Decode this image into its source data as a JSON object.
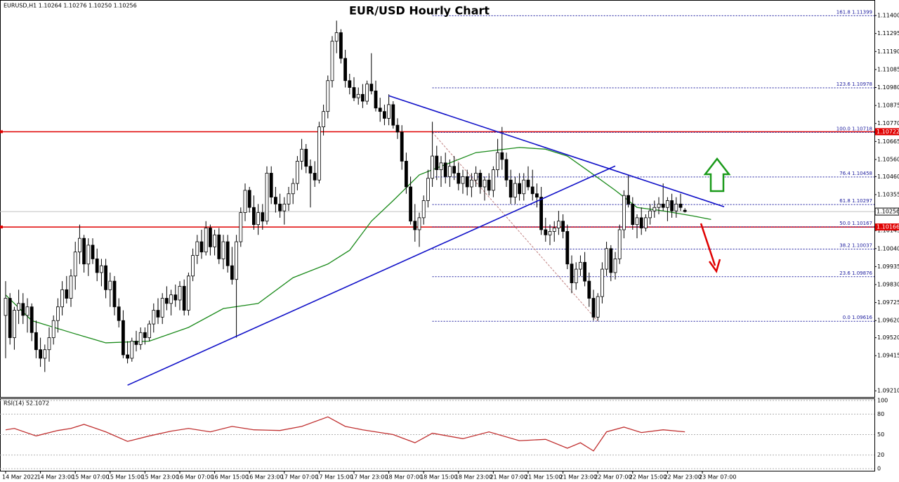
{
  "chart_data": {
    "type": "candlestick",
    "title": "EUR/USD Hourly Chart",
    "header": "EURUSD,H1  1.10264 1.10276 1.10250 1.10256",
    "ylim": [
      1.0917,
      1.1147
    ],
    "yticks": [
      {
        "value": 1.114,
        "label": "1.11400"
      },
      {
        "value": 1.11295,
        "label": "1.11295"
      },
      {
        "value": 1.1119,
        "label": "1.11190"
      },
      {
        "value": 1.11085,
        "label": "1.11085"
      },
      {
        "value": 1.1098,
        "label": "1.10980"
      },
      {
        "value": 1.10875,
        "label": "1.10875"
      },
      {
        "value": 1.1077,
        "label": "1.10770"
      },
      {
        "value": 1.10665,
        "label": "1.10665"
      },
      {
        "value": 1.1056,
        "label": "1.10560"
      },
      {
        "value": 1.1046,
        "label": "1.10460"
      },
      {
        "value": 1.10355,
        "label": "1.10355"
      },
      {
        "value": 1.10145,
        "label": "1.10145"
      },
      {
        "value": 1.1004,
        "label": "1.10040"
      },
      {
        "value": 1.09935,
        "label": "1.09935"
      },
      {
        "value": 1.0983,
        "label": "1.09830"
      },
      {
        "value": 1.09725,
        "label": "1.09725"
      },
      {
        "value": 1.0962,
        "label": "1.09620"
      },
      {
        "value": 1.0952,
        "label": "1.09520"
      },
      {
        "value": 1.09415,
        "label": "1.09415"
      },
      {
        "value": 1.0921,
        "label": "1.09210"
      }
    ],
    "x_labels": [
      "14 Mar 2022",
      "14 Mar 23:00",
      "15 Mar 07:00",
      "15 Mar 15:00",
      "15 Mar 23:00",
      "16 Mar 07:00",
      "16 Mar 15:00",
      "16 Mar 23:00",
      "17 Mar 07:00",
      "17 Mar 15:00",
      "17 Mar 23:00",
      "18 Mar 07:00",
      "18 Mar 15:00",
      "18 Mar 23:00",
      "21 Mar 07:00",
      "21 Mar 15:00",
      "21 Mar 23:00",
      "22 Mar 07:00",
      "22 Mar 15:00",
      "22 Mar 23:00",
      "23 Mar 07:00"
    ],
    "candles": [
      [
        1.0965,
        1.0985,
        1.094,
        1.0975
      ],
      [
        1.0975,
        1.0978,
        1.0948,
        1.0952
      ],
      [
        1.0952,
        1.097,
        1.0945,
        1.0968
      ],
      [
        1.0968,
        1.098,
        1.096,
        1.0972
      ],
      [
        1.0972,
        1.0978,
        1.096,
        1.0965
      ],
      [
        1.0965,
        1.0975,
        1.0955,
        1.097
      ],
      [
        1.097,
        1.0972,
        1.095,
        1.0955
      ],
      [
        1.0955,
        1.0962,
        1.094,
        1.0945
      ],
      [
        1.0945,
        1.0952,
        1.0935,
        1.094
      ],
      [
        1.094,
        1.0948,
        1.0932,
        1.0945
      ],
      [
        1.0945,
        1.0958,
        1.0938,
        1.0952
      ],
      [
        1.0952,
        1.0965,
        1.0948,
        1.0962
      ],
      [
        1.0962,
        1.0975,
        1.0955,
        1.097
      ],
      [
        1.097,
        1.0985,
        1.0965,
        1.098
      ],
      [
        1.098,
        1.0988,
        1.0972,
        1.0975
      ],
      [
        1.0975,
        1.0992,
        1.097,
        1.0988
      ],
      [
        1.0988,
        1.1008,
        1.098,
        1.1002
      ],
      [
        1.1002,
        1.1018,
        1.0995,
        1.101
      ],
      [
        1.101,
        1.1012,
        1.099,
        1.0995
      ],
      [
        1.0995,
        1.101,
        1.0988,
        1.1006
      ],
      [
        1.1006,
        1.101,
        1.0995,
        1.0998
      ],
      [
        1.0998,
        1.1004,
        1.0985,
        1.099
      ],
      [
        1.099,
        1.0998,
        1.0982,
        1.0994
      ],
      [
        1.0994,
        1.0998,
        1.0975,
        1.098
      ],
      [
        1.098,
        1.099,
        1.097,
        1.0985
      ],
      [
        1.0985,
        1.0988,
        1.0965,
        1.097
      ],
      [
        1.097,
        1.0975,
        1.0958,
        1.0962
      ],
      [
        1.0962,
        1.0968,
        1.094,
        1.0942
      ],
      [
        1.0942,
        1.095,
        1.0937,
        1.094
      ],
      [
        1.094,
        1.0952,
        1.0938,
        1.095
      ],
      [
        1.095,
        1.0956,
        1.0944,
        1.0948
      ],
      [
        1.0948,
        1.0958,
        1.0945,
        1.0955
      ],
      [
        1.0955,
        1.0958,
        1.0948,
        1.0952
      ],
      [
        1.0952,
        1.0962,
        1.095,
        1.096
      ],
      [
        1.096,
        1.0972,
        1.0955,
        1.0968
      ],
      [
        1.0968,
        1.0975,
        1.096,
        1.0964
      ],
      [
        1.0964,
        1.0978,
        1.096,
        1.0975
      ],
      [
        1.0975,
        1.0982,
        1.0968,
        1.0972
      ],
      [
        1.0972,
        1.098,
        1.0965,
        1.0977
      ],
      [
        1.0977,
        1.0983,
        1.097,
        1.0974
      ],
      [
        1.0974,
        1.0985,
        1.0968,
        1.0982
      ],
      [
        1.0982,
        1.0986,
        1.0965,
        1.0968
      ],
      [
        1.0968,
        1.099,
        1.0965,
        1.0988
      ],
      [
        1.0988,
        1.1004,
        1.0985,
        1.1
      ],
      [
        1.1,
        1.1012,
        1.0995,
        1.1008
      ],
      [
        1.1008,
        1.1015,
        1.0998,
        1.1002
      ],
      [
        1.1002,
        1.102,
        1.1,
        1.1016
      ],
      [
        1.1016,
        1.1018,
        1.1,
        1.1005
      ],
      [
        1.1005,
        1.1015,
        1.1,
        1.1012
      ],
      [
        1.1012,
        1.1016,
        1.0995,
        1.0998
      ],
      [
        1.0998,
        1.1012,
        1.0992,
        1.1008
      ],
      [
        1.1008,
        1.1012,
        1.099,
        1.0994
      ],
      [
        1.0994,
        1.1005,
        1.0983,
        1.0986
      ],
      [
        1.0986,
        1.1012,
        1.0952,
        1.1008
      ],
      [
        1.1008,
        1.1028,
        1.1005,
        1.1025
      ],
      [
        1.1025,
        1.1042,
        1.102,
        1.1038
      ],
      [
        1.1038,
        1.104,
        1.1025,
        1.1028
      ],
      [
        1.1028,
        1.1035,
        1.1015,
        1.1018
      ],
      [
        1.1018,
        1.103,
        1.1012,
        1.1025
      ],
      [
        1.1025,
        1.103,
        1.1015,
        1.102
      ],
      [
        1.102,
        1.1052,
        1.1018,
        1.1048
      ],
      [
        1.1048,
        1.1052,
        1.103,
        1.1034
      ],
      [
        1.1034,
        1.104,
        1.1025,
        1.103
      ],
      [
        1.103,
        1.1036,
        1.1022,
        1.1026
      ],
      [
        1.1026,
        1.1034,
        1.1018,
        1.103
      ],
      [
        1.103,
        1.104,
        1.1026,
        1.1036
      ],
      [
        1.1036,
        1.1045,
        1.103,
        1.1042
      ],
      [
        1.1042,
        1.1058,
        1.1038,
        1.1055
      ],
      [
        1.1055,
        1.1068,
        1.105,
        1.1062
      ],
      [
        1.1062,
        1.1065,
        1.1048,
        1.1052
      ],
      [
        1.1052,
        1.1056,
        1.1028,
        1.1048
      ],
      [
        1.1048,
        1.1055,
        1.104,
        1.1044
      ],
      [
        1.1044,
        1.1078,
        1.1042,
        1.1075
      ],
      [
        1.1075,
        1.1088,
        1.107,
        1.1084
      ],
      [
        1.1084,
        1.1105,
        1.108,
        1.1102
      ],
      [
        1.1102,
        1.1128,
        1.1098,
        1.1125
      ],
      [
        1.1125,
        1.1137,
        1.1118,
        1.113
      ],
      [
        1.113,
        1.1132,
        1.1112,
        1.1115
      ],
      [
        1.1115,
        1.112,
        1.1098,
        1.1102
      ],
      [
        1.1102,
        1.1106,
        1.1094,
        1.1098
      ],
      [
        1.1098,
        1.1104,
        1.109,
        1.1092
      ],
      [
        1.1092,
        1.1098,
        1.1088,
        1.1094
      ],
      [
        1.1094,
        1.11,
        1.1086,
        1.109
      ],
      [
        1.109,
        1.1102,
        1.1088,
        1.11
      ],
      [
        1.11,
        1.1118,
        1.1094,
        1.1096
      ],
      [
        1.1096,
        1.1102,
        1.1084,
        1.1086
      ],
      [
        1.1086,
        1.1092,
        1.1078,
        1.1084
      ],
      [
        1.1084,
        1.1088,
        1.1076,
        1.108
      ],
      [
        1.108,
        1.1094,
        1.1076,
        1.1088
      ],
      [
        1.1088,
        1.109,
        1.1074,
        1.1076
      ],
      [
        1.1076,
        1.108,
        1.1068,
        1.1072
      ],
      [
        1.1072,
        1.1076,
        1.105,
        1.1055
      ],
      [
        1.1055,
        1.106,
        1.1036,
        1.104
      ],
      [
        1.104,
        1.1046,
        1.1018,
        1.102
      ],
      [
        1.102,
        1.103,
        1.1008,
        1.1015
      ],
      [
        1.1015,
        1.1025,
        1.1005,
        1.1022
      ],
      [
        1.1022,
        1.1035,
        1.1018,
        1.1032
      ],
      [
        1.1032,
        1.105,
        1.1028,
        1.1045
      ],
      [
        1.1045,
        1.1078,
        1.104,
        1.1058
      ],
      [
        1.1058,
        1.1064,
        1.1044,
        1.105
      ],
      [
        1.105,
        1.1058,
        1.104,
        1.1054
      ],
      [
        1.1054,
        1.106,
        1.1042,
        1.1046
      ],
      [
        1.1046,
        1.1056,
        1.104,
        1.1052
      ],
      [
        1.1052,
        1.1058,
        1.1044,
        1.1048
      ],
      [
        1.1048,
        1.1054,
        1.1038,
        1.1042
      ],
      [
        1.1042,
        1.105,
        1.1036,
        1.1046
      ],
      [
        1.1046,
        1.105,
        1.1035,
        1.104
      ],
      [
        1.104,
        1.1048,
        1.1034,
        1.1044
      ],
      [
        1.1044,
        1.1052,
        1.104,
        1.1048
      ],
      [
        1.1048,
        1.105,
        1.1036,
        1.104
      ],
      [
        1.104,
        1.1046,
        1.1032,
        1.1044
      ],
      [
        1.1044,
        1.1048,
        1.1035,
        1.1038
      ],
      [
        1.1038,
        1.1052,
        1.1034,
        1.105
      ],
      [
        1.105,
        1.1068,
        1.1046,
        1.106
      ],
      [
        1.106,
        1.1075,
        1.105,
        1.1056
      ],
      [
        1.1056,
        1.106,
        1.104,
        1.1044
      ],
      [
        1.1044,
        1.105,
        1.103,
        1.1034
      ],
      [
        1.1034,
        1.1046,
        1.103,
        1.1042
      ],
      [
        1.1042,
        1.1048,
        1.1032,
        1.1036
      ],
      [
        1.1036,
        1.1048,
        1.1032,
        1.1044
      ],
      [
        1.1044,
        1.1052,
        1.1038,
        1.104
      ],
      [
        1.104,
        1.105,
        1.1032,
        1.1036
      ],
      [
        1.1036,
        1.1042,
        1.1028,
        1.1034
      ],
      [
        1.1034,
        1.104,
        1.1012,
        1.1015
      ],
      [
        1.1015,
        1.1022,
        1.1008,
        1.1012
      ],
      [
        1.1012,
        1.1018,
        1.1006,
        1.1014
      ],
      [
        1.1014,
        1.102,
        1.1008,
        1.1016
      ],
      [
        1.1016,
        1.1026,
        1.1012,
        1.102
      ],
      [
        1.102,
        1.1024,
        1.101,
        1.1014
      ],
      [
        1.1014,
        1.1018,
        1.0992,
        1.0995
      ],
      [
        1.0995,
        1.1,
        1.0978,
        1.0984
      ],
      [
        1.0984,
        1.0996,
        1.098,
        1.0992
      ],
      [
        1.0992,
        1.1,
        1.0988,
        1.0996
      ],
      [
        1.0996,
        1.1002,
        1.0982,
        1.0985
      ],
      [
        1.0985,
        1.099,
        1.097,
        1.0975
      ],
      [
        1.0975,
        1.098,
        1.0962,
        1.0964
      ],
      [
        1.0964,
        1.0978,
        1.0962,
        1.0976
      ],
      [
        1.0976,
        1.0996,
        1.0972,
        1.0992
      ],
      [
        1.0992,
        1.1008,
        1.0988,
        1.1004
      ],
      [
        1.1004,
        1.1006,
        1.0985,
        1.099
      ],
      [
        1.099,
        1.1002,
        1.0986,
        1.0998
      ],
      [
        1.0998,
        1.1018,
        1.0995,
        1.1015
      ],
      [
        1.1015,
        1.1038,
        1.101,
        1.1035
      ],
      [
        1.1035,
        1.1047,
        1.1028,
        1.103
      ],
      [
        1.103,
        1.1034,
        1.1015,
        1.1018
      ],
      [
        1.1018,
        1.1024,
        1.101,
        1.1022
      ],
      [
        1.1022,
        1.1028,
        1.1012,
        1.1016
      ],
      [
        1.1016,
        1.1024,
        1.1014,
        1.1022
      ],
      [
        1.1022,
        1.103,
        1.1018,
        1.1026
      ],
      [
        1.1026,
        1.1032,
        1.1022,
        1.1028
      ],
      [
        1.1028,
        1.1034,
        1.1024,
        1.103
      ],
      [
        1.103,
        1.1042,
        1.1026,
        1.1028
      ],
      [
        1.1028,
        1.1034,
        1.102,
        1.1032
      ],
      [
        1.1032,
        1.1036,
        1.1022,
        1.1026
      ],
      [
        1.1026,
        1.1034,
        1.1022,
        1.103
      ],
      [
        1.103,
        1.1036,
        1.1026,
        1.1028
      ],
      [
        1.10264,
        1.10276,
        1.1025,
        1.10256
      ]
    ],
    "current_price": 1.10256,
    "levels": [
      {
        "value": 1.10722,
        "color": "#e00000"
      },
      {
        "value": 1.10166,
        "color": "#e00000"
      }
    ],
    "fib": {
      "color": "#2020a0",
      "x": [
        98,
        136
      ],
      "diagonal_color": "#c08080",
      "levels": [
        {
          "value": 1.11399,
          "label": "161.8 1.11399"
        },
        {
          "value": 1.10978,
          "label": "123.6 1.10978"
        },
        {
          "value": 1.10718,
          "label": "100.0 1.10718"
        },
        {
          "value": 1.10458,
          "label": "76.4 1.10458"
        },
        {
          "value": 1.10297,
          "label": "61.8 1.10297"
        },
        {
          "value": 1.10167,
          "label": "50.0 1.10167"
        },
        {
          "value": 1.10037,
          "label": "38.2 1.10037"
        },
        {
          "value": 1.09876,
          "label": "23.6 1.09876"
        },
        {
          "value": 1.09616,
          "label": "0.0 1.09616"
        }
      ]
    },
    "trendlines": [
      {
        "x": [
          88,
          165
        ],
        "y": [
          1.10932,
          1.10284
        ],
        "color": "#1010c8"
      },
      {
        "x": [
          28,
          140
        ],
        "y": [
          1.09243,
          1.10522
        ],
        "color": "#1010c8"
      }
    ],
    "ma": {
      "color": "#1a8a1a",
      "x": [
        0,
        6,
        15,
        23,
        33,
        42,
        50,
        58,
        66,
        74,
        79,
        84,
        89,
        95,
        102,
        108,
        118,
        124,
        129,
        134,
        140,
        145,
        151,
        158,
        162
      ],
      "values": [
        1.0977,
        1.0962,
        1.0955,
        1.0949,
        1.095,
        1.0958,
        1.0969,
        1.0972,
        1.0987,
        1.0995,
        1.1003,
        1.102,
        1.1032,
        1.1047,
        1.1054,
        1.106,
        1.1063,
        1.1062,
        1.1058,
        1.1049,
        1.1038,
        1.1028,
        1.1026,
        1.1023,
        1.1021
      ]
    },
    "rsi": {
      "label": "RSI(14) 52.1072",
      "color": "#c03030",
      "ylim": [
        0,
        100
      ],
      "yticks": [
        100,
        80,
        50,
        20,
        0
      ],
      "x": [
        0,
        2,
        7,
        12,
        15,
        18,
        23,
        28,
        33,
        38,
        42,
        47,
        52,
        57,
        63,
        68,
        74,
        78,
        82,
        89,
        94,
        98,
        105,
        111,
        118,
        124,
        129,
        132,
        135,
        138,
        142,
        146,
        151,
        156
      ],
      "values": [
        57,
        59,
        48,
        56,
        59,
        65,
        54,
        40,
        48,
        55,
        59,
        54,
        62,
        57,
        56,
        62,
        76,
        62,
        57,
        50,
        38,
        52,
        44,
        54,
        41,
        43,
        30,
        38,
        26,
        54,
        61,
        53,
        57,
        54
      ]
    }
  }
}
